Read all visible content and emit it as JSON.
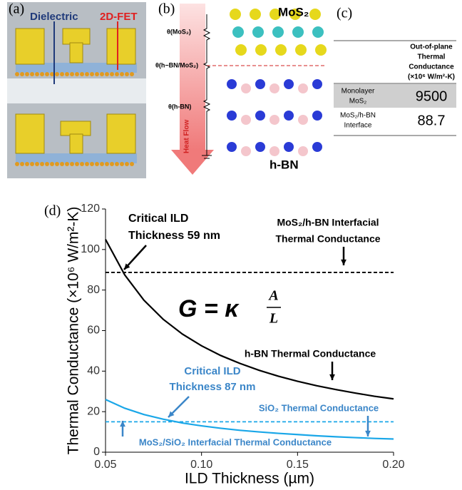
{
  "panel_a": {
    "label": "(a)",
    "texts": [
      "Dielectric",
      "2D-FET"
    ]
  },
  "panel_b": {
    "label": "(b)",
    "resistances": [
      "θ(MoS₂)",
      "θ(h−BN/MoS₂)",
      "θ(h-BN)"
    ],
    "arrow_label": "Heat Flow",
    "top_material": "MoS₂",
    "bottom_material": "h-BN"
  },
  "panel_c": {
    "label": "(c)",
    "header": [
      "Out-of-plane",
      "Thermal",
      "Conductance",
      "(×10⁶ W/m²-K)"
    ],
    "rows": [
      [
        [
          "Monolayer",
          "MoS₂"
        ],
        "9500"
      ],
      [
        [
          "MoS₂/h-BN",
          "Interface"
        ],
        "88.7"
      ]
    ]
  },
  "chart_data": {
    "type": "line",
    "panel_label": "(d)",
    "x_label": "ILD Thickness (µm)",
    "y_label": "Thermal Conductance (×10⁶ W/m²-K)",
    "x": [
      0.05,
      0.06,
      0.07,
      0.08,
      0.09,
      0.1,
      0.11,
      0.12,
      0.13,
      0.14,
      0.15,
      0.16,
      0.17,
      0.18,
      0.19,
      0.2
    ],
    "series": [
      {
        "color": "#000000",
        "values": [
          105,
          87.5,
          75,
          65.6,
          58.3,
          52.5,
          47.7,
          43.8,
          40.4,
          37.5,
          35,
          32.8,
          30.9,
          29.2,
          27.6,
          26.3
        ]
      },
      {
        "color": "#1aa7e8",
        "values": [
          26,
          21.7,
          18.6,
          16.3,
          14.4,
          13,
          11.8,
          10.8,
          10,
          9.3,
          8.7,
          8.1,
          7.6,
          7.2,
          6.8,
          6.5
        ]
      }
    ],
    "reference_lines": [
      {
        "value": 88.7,
        "color": "#000000"
      },
      {
        "value": 15,
        "color": "#1aa7e8"
      }
    ],
    "xlim": [
      0.05,
      0.2
    ],
    "xticks": [
      0.05,
      {
        "value": 0.1,
        "label": "0.10"
      },
      0.15,
      {
        "value": 0.2,
        "label": "0.20"
      }
    ],
    "ylim": [
      0,
      120
    ],
    "yticks": [
      0,
      20,
      40,
      60,
      80,
      100,
      120
    ],
    "annotations": {
      "critical_hbn": [
        "Critical ILD",
        "Thickness 59 nm"
      ],
      "interfacial_hbn": [
        "MoS₂/h-BN Interfacial",
        "Thermal Conductance"
      ],
      "formula": [
        "G = κ",
        "A",
        "L"
      ],
      "hbn_curve": "h-BN Thermal Conductance",
      "critical_sio2": [
        "Critical ILD",
        "Thickness 87 nm"
      ],
      "sio2_curve": "SiO₂ Thermal Conductance",
      "interfacial_sio2": "MoS₂/SiO₂ Interfacial Thermal Conductance"
    }
  }
}
